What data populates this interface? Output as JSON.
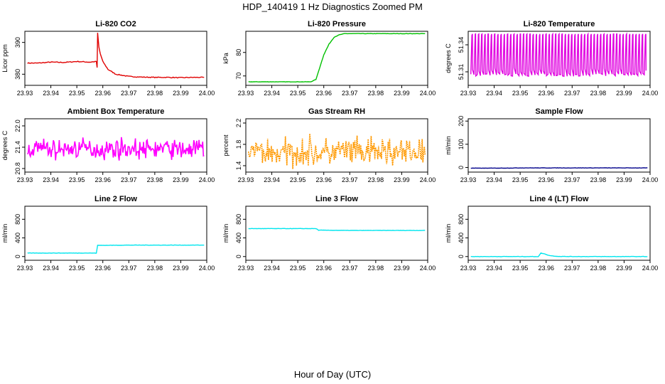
{
  "title": "HDP_140419  1 Hz Diagnostics Zoomed PM",
  "xlabel": "Hour of Day (UTC)",
  "chart_data": [
    {
      "type": "line",
      "title": "Li-820 CO2",
      "ylabel": "Licor ppm",
      "color": "#e00000",
      "xlim": [
        23.93,
        24.0
      ],
      "ylim": [
        376.5,
        393.5
      ],
      "xticks": [
        "23.93",
        "23.94",
        "23.95",
        "23.96",
        "23.97",
        "23.98",
        "23.99",
        "24.00"
      ],
      "yticks": [
        "380",
        "390"
      ],
      "series": [
        {
          "name": "CO2",
          "x": [
            23.931,
            23.935,
            23.94,
            23.945,
            23.95,
            23.955,
            23.9575,
            23.9578,
            23.958,
            23.9585,
            23.959,
            23.96,
            23.962,
            23.965,
            23.97,
            23.975,
            23.98,
            23.985,
            23.99,
            23.995,
            23.999
          ],
          "values": [
            383.5,
            383.5,
            383.8,
            383.7,
            384.0,
            383.8,
            384.0,
            382.0,
            393.0,
            388.5,
            386.5,
            384.0,
            381.5,
            380.0,
            379.3,
            379.1,
            379.0,
            379.0,
            378.9,
            379.0,
            379.0
          ]
        }
      ]
    },
    {
      "type": "line",
      "title": "Li-820 Pressure",
      "ylabel": "kPa",
      "color": "#00c000",
      "xlim": [
        23.93,
        24.0
      ],
      "ylim": [
        66,
        89
      ],
      "xticks": [
        "23.93",
        "23.94",
        "23.95",
        "23.96",
        "23.97",
        "23.98",
        "23.99",
        "24.00"
      ],
      "yticks": [
        "70",
        "80"
      ],
      "series": [
        {
          "name": "Pressure",
          "x": [
            23.931,
            23.94,
            23.95,
            23.955,
            23.957,
            23.958,
            23.96,
            23.962,
            23.964,
            23.966,
            23.968,
            23.97,
            23.98,
            23.99,
            23.999
          ],
          "values": [
            67.5,
            67.5,
            67.5,
            67.5,
            68.5,
            72.0,
            79.0,
            83.5,
            86.5,
            87.5,
            88.0,
            88.0,
            88.0,
            88.0,
            88.0
          ]
        }
      ]
    },
    {
      "type": "line",
      "title": "Li-820 Temperature",
      "ylabel": "degrees C",
      "color": "#e000e0",
      "xlim": [
        23.93,
        24.0
      ],
      "ylim": [
        51.295,
        51.355
      ],
      "xticks": [
        "23.93",
        "23.94",
        "23.95",
        "23.96",
        "23.97",
        "23.98",
        "23.99",
        "24.00"
      ],
      "yticks": [
        "51.31",
        "51.34"
      ],
      "series": [
        {
          "name": "Temperature",
          "low": 51.305,
          "high": 51.352,
          "cycles": 55
        }
      ]
    },
    {
      "type": "line",
      "title": "Ambient Box Temperature",
      "ylabel": "degrees C",
      "color": "#ff00ff",
      "xlim": [
        23.93,
        24.0
      ],
      "ylim": [
        20.7,
        22.2
      ],
      "xticks": [
        "23.93",
        "23.94",
        "23.95",
        "23.96",
        "23.97",
        "23.98",
        "23.99",
        "24.00"
      ],
      "yticks": [
        "20.8",
        "21.4",
        "22.0"
      ],
      "series": [
        {
          "name": "Ambient",
          "mean": 21.35,
          "amplitude": 0.25,
          "points": 240
        }
      ]
    },
    {
      "type": "line",
      "title": "Gas Stream RH",
      "ylabel": "percent",
      "color": "#ff9900",
      "xlim": [
        23.93,
        24.0
      ],
      "ylim": [
        1.28,
        2.28
      ],
      "xticks": [
        "23.93",
        "23.94",
        "23.95",
        "23.96",
        "23.97",
        "23.98",
        "23.99",
        "24.00"
      ],
      "yticks": [
        "1.4",
        "1.8",
        "2.2"
      ],
      "series": [
        {
          "name": "RH",
          "mean": 1.65,
          "amplitude": 0.25,
          "points": 240
        }
      ]
    },
    {
      "type": "line",
      "title": "Sample Flow",
      "ylabel": "ml/min",
      "color": "#00008b",
      "xlim": [
        23.93,
        24.0
      ],
      "ylim": [
        -20,
        210
      ],
      "xticks": [
        "23.93",
        "23.94",
        "23.95",
        "23.96",
        "23.97",
        "23.98",
        "23.99",
        "24.00"
      ],
      "yticks": [
        "0",
        "100",
        "200"
      ],
      "series": [
        {
          "name": "Sample",
          "x": [
            23.931,
            23.94,
            23.95,
            23.96,
            23.97,
            23.98,
            23.99,
            23.999
          ],
          "values": [
            -3,
            -3,
            -2,
            -2,
            -2,
            -2,
            -2,
            -2
          ]
        }
      ]
    },
    {
      "type": "line",
      "title": "Line 2 Flow",
      "ylabel": "ml/min",
      "color": "#00e5ee",
      "xlim": [
        23.93,
        24.0
      ],
      "ylim": [
        -80,
        1080
      ],
      "xticks": [
        "23.93",
        "23.94",
        "23.95",
        "23.96",
        "23.97",
        "23.98",
        "23.99",
        "24.00"
      ],
      "yticks": [
        "0",
        "400",
        "800"
      ],
      "series": [
        {
          "name": "Line 2",
          "x": [
            23.931,
            23.94,
            23.95,
            23.9575,
            23.958,
            23.96,
            23.97,
            23.98,
            23.99,
            23.999
          ],
          "values": [
            75,
            75,
            75,
            75,
            240,
            240,
            245,
            245,
            245,
            245
          ]
        }
      ]
    },
    {
      "type": "line",
      "title": "Line 3 Flow",
      "ylabel": "ml/min",
      "color": "#00e5ee",
      "xlim": [
        23.93,
        24.0
      ],
      "ylim": [
        -80,
        1080
      ],
      "xticks": [
        "23.93",
        "23.94",
        "23.95",
        "23.96",
        "23.97",
        "23.98",
        "23.99",
        "24.00"
      ],
      "yticks": [
        "0",
        "400",
        "800"
      ],
      "series": [
        {
          "name": "Line 3",
          "x": [
            23.931,
            23.94,
            23.95,
            23.957,
            23.958,
            23.96,
            23.97,
            23.98,
            23.99,
            23.999
          ],
          "values": [
            600,
            600,
            600,
            600,
            565,
            565,
            560,
            560,
            560,
            560
          ]
        }
      ]
    },
    {
      "type": "line",
      "title": "Line 4 (LT) Flow",
      "ylabel": "ml/min",
      "color": "#00e5ee",
      "xlim": [
        23.93,
        24.0
      ],
      "ylim": [
        -80,
        1080
      ],
      "xticks": [
        "23.93",
        "23.94",
        "23.95",
        "23.96",
        "23.97",
        "23.98",
        "23.99",
        "24.00"
      ],
      "yticks": [
        "0",
        "400",
        "800"
      ],
      "series": [
        {
          "name": "Line 4",
          "x": [
            23.931,
            23.94,
            23.95,
            23.957,
            23.958,
            23.9595,
            23.961,
            23.963,
            23.965,
            23.97,
            23.98,
            23.99,
            23.999
          ],
          "values": [
            0,
            0,
            0,
            0,
            75,
            55,
            25,
            10,
            2,
            0,
            0,
            0,
            0
          ]
        }
      ]
    }
  ]
}
